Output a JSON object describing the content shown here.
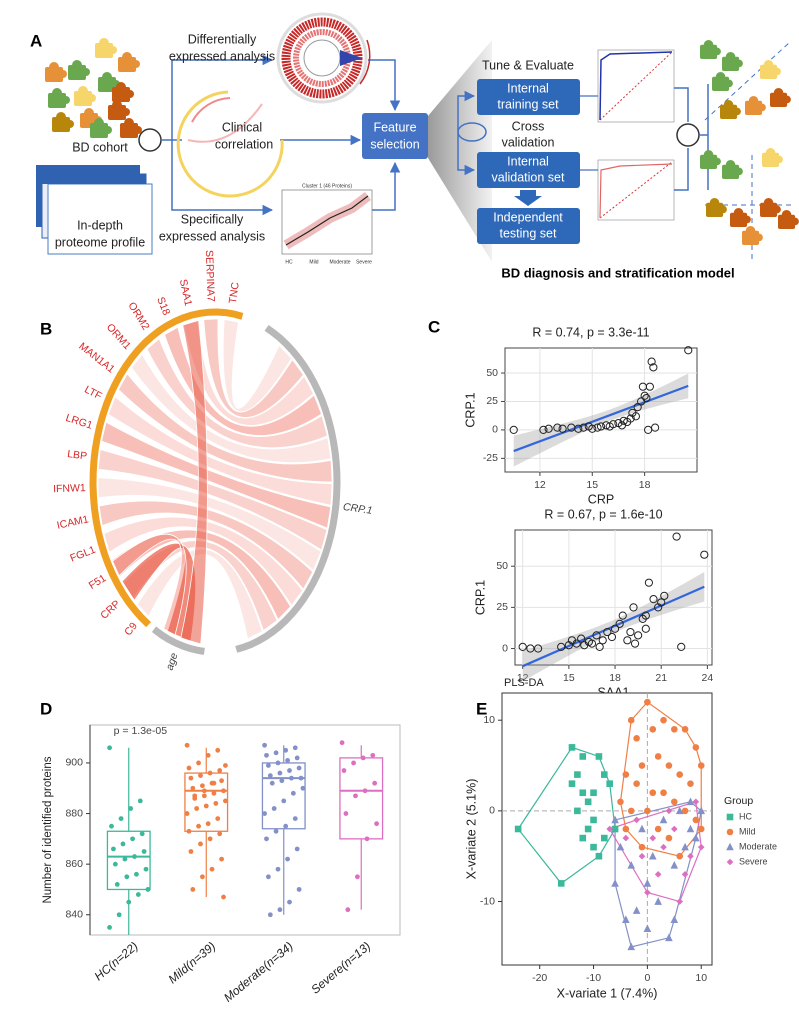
{
  "panel_a": {
    "label": "A",
    "cohort": "BD cohort",
    "proteome": [
      "In-depth",
      "proteome profile"
    ],
    "differential": [
      "Differentially",
      "expressed analysis"
    ],
    "clinical": [
      "Clinical",
      "correlation"
    ],
    "specific": [
      "Specifically",
      "expressed analysis"
    ],
    "cluster_title": "Cluster 1 (46 Proteins)",
    "cluster_groups": [
      "HC",
      "Mild",
      "Moderate",
      "Severe"
    ],
    "feature": [
      "Feature",
      "selection"
    ],
    "tune": "Tune & Evaluate",
    "training": [
      "Internal",
      "training set"
    ],
    "cross": [
      "Cross",
      "validation"
    ],
    "validation": [
      "Internal",
      "validation set"
    ],
    "testing": [
      "Independent",
      "testing set"
    ],
    "model": "BD diagnosis and stratification model"
  },
  "panel_b": {
    "label": "B",
    "labels": [
      "C9",
      "CRP",
      "F51",
      "FGL1",
      "ICAM1",
      "IFNW1",
      "LBP",
      "LRG1",
      "LTF",
      "MAN1A1",
      "ORM1",
      "ORM2",
      "S18",
      "SAA1",
      "SERPINA7",
      "TNC"
    ],
    "label_color": "#d62728",
    "arc_color": "#f0a020",
    "targets": [
      "CRP.1",
      "age"
    ],
    "target_color": "#b8b8b8"
  },
  "panel_c": {
    "label": "C"
  },
  "panel_d": {
    "label": "D"
  },
  "panel_e": {
    "label": "E"
  },
  "chart_data": [
    {
      "type": "scatter",
      "title": "R = 0.74, p = 3.3e-11",
      "x_label": "CRP",
      "y_label": "CRP.1",
      "x": [
        10.5,
        12.2,
        12.5,
        13,
        13.3,
        13.8,
        14.2,
        14.5,
        14.8,
        15,
        15.3,
        15.5,
        15.8,
        16,
        16.2,
        16.5,
        16.7,
        17,
        17.2,
        17.5,
        17.6,
        17.8,
        18,
        18.1,
        17.9,
        18.2,
        18.5,
        18.4,
        18.3,
        20.5,
        18.6,
        16.8,
        17.3
      ],
      "values": [
        0,
        0,
        1,
        2,
        1,
        2,
        1,
        2,
        3,
        1,
        2,
        3,
        4,
        3,
        5,
        6,
        4,
        7,
        10,
        12,
        20,
        25,
        30,
        28,
        38,
        0,
        55,
        60,
        38,
        70,
        2,
        8,
        15
      ],
      "color": "#222222",
      "fit_color": "#3366dd",
      "xlim": [
        10,
        21
      ],
      "xticks": [
        12,
        15,
        18
      ],
      "ylim": [
        -37,
        72
      ],
      "yticks": [
        -25,
        0,
        25,
        50
      ],
      "grid": true
    },
    {
      "type": "scatter",
      "title": "R = 0.67, p = 1.6e-10",
      "x_label": "SAA1",
      "y_label": "CRP.1",
      "x": [
        12,
        12.5,
        13,
        14.5,
        15,
        15.2,
        15.5,
        15.8,
        16,
        16.3,
        16.5,
        16.8,
        17,
        17.2,
        17.5,
        17.8,
        18,
        18.3,
        18.5,
        18.8,
        19,
        19.2,
        19.5,
        19.8,
        20,
        20.2,
        20.5,
        20.8,
        21,
        21.2,
        22,
        22.3,
        23.8,
        20,
        19.3
      ],
      "values": [
        1,
        0,
        0,
        1,
        2,
        5,
        3,
        6,
        2,
        4,
        3,
        8,
        1,
        5,
        10,
        7,
        12,
        15,
        20,
        5,
        10,
        25,
        8,
        18,
        12,
        40,
        30,
        25,
        28,
        32,
        68,
        1,
        57,
        20,
        3
      ],
      "color": "#222222",
      "fit_color": "#3366dd",
      "xlim": [
        11.5,
        24.3
      ],
      "xticks": [
        12,
        15,
        18,
        21,
        24
      ],
      "ylim": [
        -10,
        72
      ],
      "yticks": [
        0,
        25,
        50
      ],
      "grid": true
    },
    {
      "type": "box",
      "y_label": "Number of identified proteins",
      "annotation": "p = 1.3e-05",
      "categories": [
        "HC(n=22)",
        "Mild(n=39)",
        "Moderate(n=34)",
        "Severe(n=13)"
      ],
      "ylim": [
        832,
        915
      ],
      "yticks": [
        840,
        860,
        880,
        900
      ],
      "series": [
        {
          "color": "#3cb89a",
          "low": 832,
          "q1": 850,
          "median": 863,
          "q3": 873,
          "high": 906,
          "values": [
            906,
            885,
            882,
            878,
            875,
            872,
            870,
            868,
            866,
            865,
            863,
            862,
            860,
            858,
            856,
            855,
            852,
            850,
            848,
            845,
            840,
            835
          ]
        },
        {
          "color": "#ef7f45",
          "low": 847,
          "q1": 873,
          "median": 889,
          "q3": 896,
          "high": 906,
          "values": [
            907,
            905,
            903,
            900,
            898,
            897,
            896,
            895,
            894,
            893,
            892,
            891,
            890,
            889,
            888,
            887,
            886,
            885,
            884,
            883,
            882,
            880,
            878,
            876,
            875,
            873,
            872,
            870,
            868,
            865,
            862,
            858,
            855,
            850,
            847,
            892,
            889,
            887,
            899
          ]
        },
        {
          "color": "#8391c8",
          "low": 840,
          "q1": 874,
          "median": 894,
          "q3": 900,
          "high": 907,
          "values": [
            907,
            906,
            905,
            904,
            903,
            902,
            901,
            900,
            899,
            898,
            897,
            896,
            895,
            894,
            894,
            893,
            892,
            890,
            888,
            885,
            882,
            880,
            878,
            875,
            873,
            870,
            866,
            862,
            858,
            855,
            850,
            845,
            842,
            840
          ]
        },
        {
          "color": "#dd6fc1",
          "low": 842,
          "q1": 870,
          "median": 889,
          "q3": 902,
          "high": 907,
          "values": [
            908,
            903,
            902,
            900,
            897,
            892,
            889,
            887,
            880,
            876,
            870,
            855,
            842
          ]
        }
      ]
    },
    {
      "type": "scatter_groups",
      "title": "PLS-DA",
      "x_label": "X-variate 1 (7.4%)",
      "y_label": "X-variate 2 (5.1%)",
      "legend_title": "Group",
      "legend": "right",
      "xlim": [
        -27,
        12
      ],
      "xticks": [
        -20,
        -10,
        0,
        10
      ],
      "ylim": [
        -17,
        13
      ],
      "yticks": [
        -10,
        0,
        10
      ],
      "series": [
        {
          "name": "HC",
          "color": "#3cb89a",
          "marker": "square",
          "x": [
            -24,
            -16,
            -14,
            -12,
            -13,
            -14,
            -12,
            -11,
            -13,
            -10,
            -11,
            -12,
            -10,
            -9,
            -8,
            -9,
            -7,
            -8,
            -10,
            -6
          ],
          "values": [
            -2,
            -8,
            7,
            6,
            4,
            3,
            2,
            1,
            0,
            -1,
            -2,
            -3,
            -4,
            -5,
            4,
            6,
            3,
            -3,
            2,
            -2
          ]
        },
        {
          "name": "Mild",
          "color": "#ef7f45",
          "marker": "circle",
          "x": [
            0,
            -3,
            -2,
            1,
            3,
            5,
            7,
            9,
            10,
            2,
            -1,
            -4,
            4,
            6,
            8,
            -2,
            1,
            3,
            5,
            -5,
            -3,
            0,
            7,
            9,
            2,
            4,
            -1,
            -4,
            6,
            10
          ],
          "values": [
            12,
            10,
            8,
            9,
            10,
            9,
            9,
            7,
            5,
            6,
            5,
            4,
            5,
            4,
            3,
            3,
            2,
            2,
            1,
            1,
            0,
            0,
            0,
            -1,
            -2,
            -3,
            -4,
            -2,
            -5,
            -2
          ]
        },
        {
          "name": "Moderate",
          "color": "#8391c8",
          "marker": "triangle",
          "x": [
            -6,
            -5,
            -3,
            -4,
            0,
            2,
            -2,
            4,
            5,
            7,
            8,
            9,
            1,
            -1,
            3,
            6,
            8,
            10,
            -3,
            -6,
            0,
            5
          ],
          "values": [
            -1,
            -4,
            -6,
            -12,
            -8,
            -10,
            -11,
            -14,
            -6,
            -4,
            -2,
            -3,
            -5,
            -2,
            -1,
            0,
            1,
            0,
            -15,
            -8,
            -13,
            -12
          ]
        },
        {
          "name": "Severe",
          "color": "#dd6fc1",
          "marker": "diamond",
          "x": [
            -7,
            -4,
            -1,
            1,
            3,
            5,
            7,
            9,
            10,
            0,
            2,
            -2,
            6,
            4,
            8
          ],
          "values": [
            -2,
            -3,
            -5,
            -3,
            -4,
            -2,
            -7,
            1,
            -4,
            -9,
            -7,
            -1,
            -10,
            0,
            -5
          ]
        }
      ]
    }
  ]
}
